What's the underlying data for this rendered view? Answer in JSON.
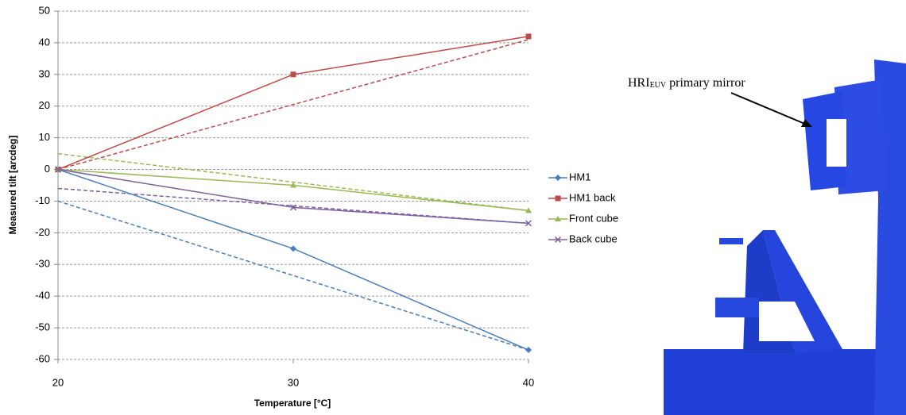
{
  "chart_data": {
    "type": "line",
    "x": [
      20,
      30,
      40
    ],
    "xlabel": "Temperature [°C]",
    "ylabel": "Measured tilt [arcdeg]",
    "xlim": [
      20,
      40
    ],
    "xticks": [
      20,
      30,
      40
    ],
    "ylim": [
      -60,
      50
    ],
    "yticks": [
      -60,
      -50,
      -40,
      -30,
      -20,
      -10,
      0,
      10,
      20,
      30,
      40,
      50
    ],
    "grid": true,
    "legend": "right",
    "series": [
      {
        "name": "HM1",
        "color": "#4a7ebb",
        "marker": "diamond",
        "values": [
          0,
          -25,
          -57
        ],
        "dashed_values": [
          -10,
          -33.5,
          -57
        ]
      },
      {
        "name": "HM1 back",
        "color": "#be4b48",
        "marker": "square",
        "values": [
          0,
          30,
          42
        ],
        "dashed_values": [
          0,
          20.5,
          41
        ]
      },
      {
        "name": "Front cube",
        "color": "#98b954",
        "marker": "triangle",
        "values": [
          0,
          -5,
          -13
        ],
        "dashed_values": [
          5,
          -4,
          -13
        ]
      },
      {
        "name": "Back cube",
        "color": "#7d60a0",
        "marker": "x",
        "values": [
          0,
          -12,
          -17
        ],
        "dashed_values": [
          -6,
          -11.5,
          -17
        ]
      }
    ]
  },
  "image": {
    "label_main": "HRI",
    "label_sub": "EUV",
    "label_rest": " primary mirror"
  }
}
